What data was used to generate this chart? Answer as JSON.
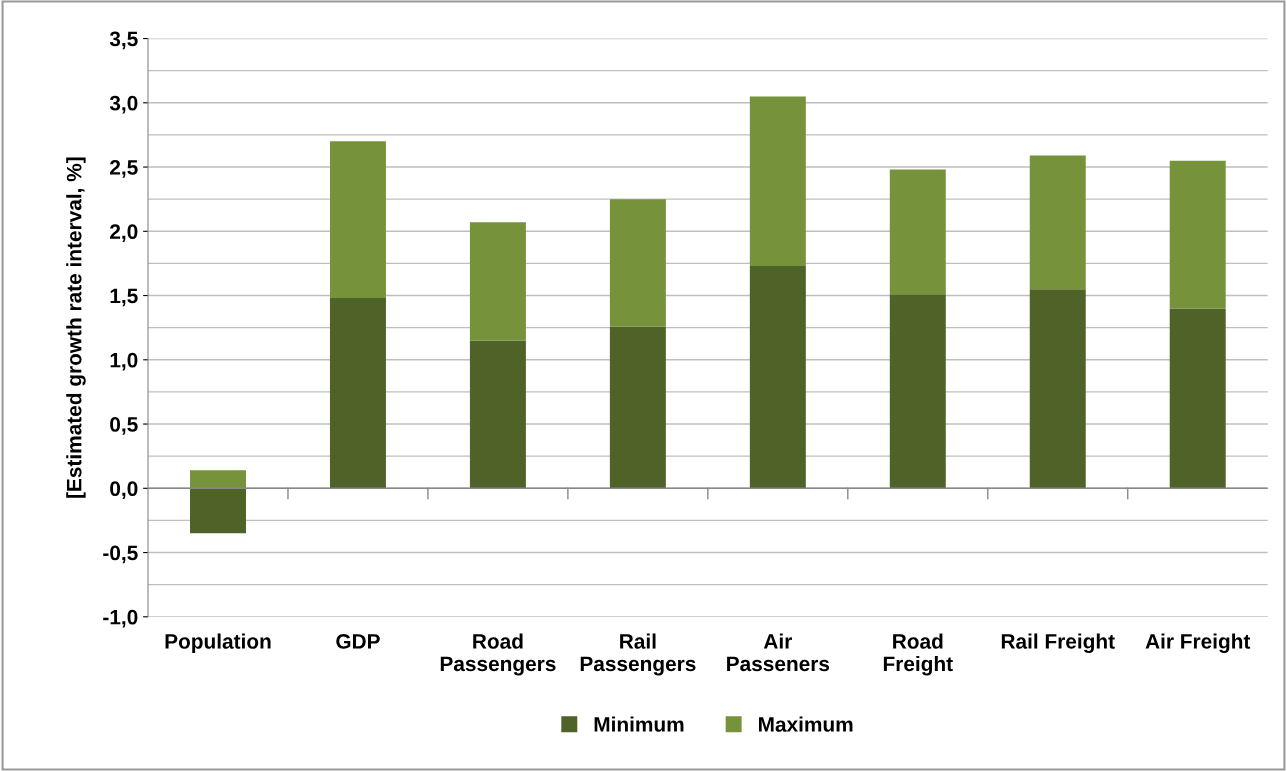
{
  "chart_data": {
    "type": "bar",
    "stacked": true,
    "ylabel": "[Estimated growth rate interval, %]",
    "categories": [
      "Population",
      "GDP",
      "Road\nPassengers",
      "Rail\nPassengers",
      "Air\nPasseners",
      "Road\nFreight",
      "Rail Freight",
      "Air Freight"
    ],
    "series": [
      {
        "name": "Minimum",
        "color": "#4f6228",
        "values": [
          -0.35,
          1.48,
          1.15,
          1.26,
          1.73,
          1.51,
          1.55,
          1.4
        ]
      },
      {
        "name": "Maximum",
        "color": "#76933c",
        "values": [
          0.14,
          1.22,
          0.92,
          0.99,
          1.32,
          0.97,
          1.04,
          1.15
        ]
      }
    ],
    "ylim": [
      -1.0,
      3.5
    ],
    "yticks": [
      {
        "value": -1.0,
        "label": "-1,0"
      },
      {
        "value": -0.75,
        "label": null
      },
      {
        "value": -0.5,
        "label": "-0,5"
      },
      {
        "value": -0.25,
        "label": null
      },
      {
        "value": 0.0,
        "label": "0,0"
      },
      {
        "value": 0.25,
        "label": null
      },
      {
        "value": 0.5,
        "label": "0,5"
      },
      {
        "value": 0.75,
        "label": null
      },
      {
        "value": 1.0,
        "label": "1,0"
      },
      {
        "value": 1.25,
        "label": null
      },
      {
        "value": 1.5,
        "label": "1,5"
      },
      {
        "value": 1.75,
        "label": null
      },
      {
        "value": 2.0,
        "label": "2,0"
      },
      {
        "value": 2.25,
        "label": null
      },
      {
        "value": 2.5,
        "label": "2,5"
      },
      {
        "value": 2.75,
        "label": null
      },
      {
        "value": 3.0,
        "label": "3,0"
      },
      {
        "value": 3.25,
        "label": null
      },
      {
        "value": 3.5,
        "label": "3,5"
      }
    ],
    "grid": "y",
    "legend": "bottom"
  }
}
